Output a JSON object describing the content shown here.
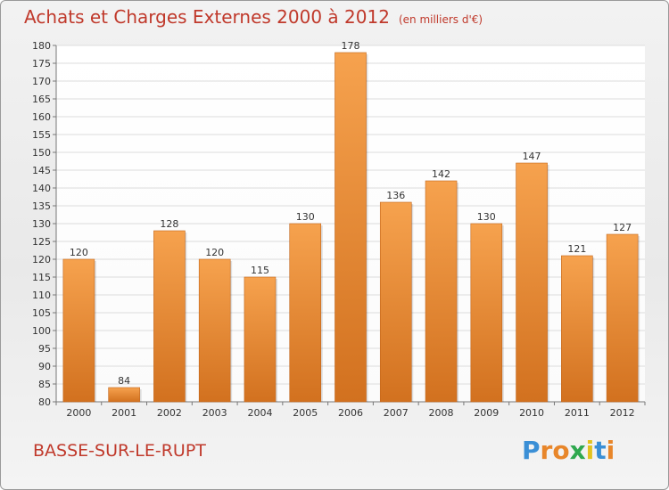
{
  "chart_data": {
    "type": "bar",
    "title": "Achats et Charges Externes 2000 à 2012",
    "unit_label": "(en milliers d'€)",
    "categories": [
      "2000",
      "2001",
      "2002",
      "2003",
      "2004",
      "2005",
      "2006",
      "2007",
      "2008",
      "2009",
      "2010",
      "2011",
      "2012"
    ],
    "values": [
      120,
      84,
      128,
      120,
      115,
      130,
      178,
      136,
      142,
      130,
      147,
      121,
      127
    ],
    "ylim": [
      80,
      180
    ],
    "yticks": [
      80,
      85,
      90,
      95,
      100,
      105,
      110,
      115,
      120,
      125,
      130,
      135,
      140,
      145,
      150,
      155,
      160,
      165,
      170,
      175,
      180
    ],
    "grid": true,
    "legend": "none",
    "bar_color_top": "#f6a24e",
    "bar_color_bottom": "#d2711f"
  },
  "commune": "BASSE-SUR-LE-RUPT",
  "logo": {
    "letters": [
      "P",
      "r",
      "o",
      "x",
      "i",
      "t",
      "i"
    ],
    "colors": [
      "#3a8fd6",
      "#e8862a",
      "#e8862a",
      "#2fa84f",
      "#e3c21f",
      "#3a8fd6",
      "#e8862a"
    ]
  }
}
